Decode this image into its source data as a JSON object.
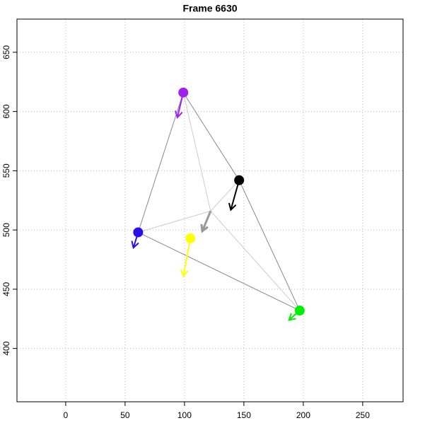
{
  "chart_data": {
    "type": "scatter",
    "title": "Frame 6630",
    "xlim": [
      -41,
      284
    ],
    "ylim": [
      355,
      678
    ],
    "xticks": [
      0,
      50,
      100,
      150,
      200,
      250
    ],
    "yticks": [
      400,
      450,
      500,
      550,
      600,
      650
    ],
    "grid": true,
    "points": {
      "x": [
        99,
        146,
        61,
        105,
        197
      ],
      "y": [
        616,
        542,
        498,
        493,
        432
      ],
      "arrow_x": [
        94,
        139,
        57,
        99,
        188
      ],
      "arrow_y": [
        595,
        517,
        485,
        461,
        424
      ],
      "colors": [
        "#a020f0",
        "#000000",
        "#2a10e8",
        "#ffff00",
        "#00ee00"
      ]
    },
    "center": {
      "x": 122,
      "y": 516,
      "arrow_x": 115,
      "arrow_y": 499,
      "color": "#999999"
    },
    "outer_edges": [
      [
        0,
        1
      ],
      [
        1,
        4
      ],
      [
        4,
        2
      ],
      [
        2,
        0
      ]
    ],
    "outer_edge_color": "#888888",
    "inner_edge_color": "#cccccc"
  }
}
